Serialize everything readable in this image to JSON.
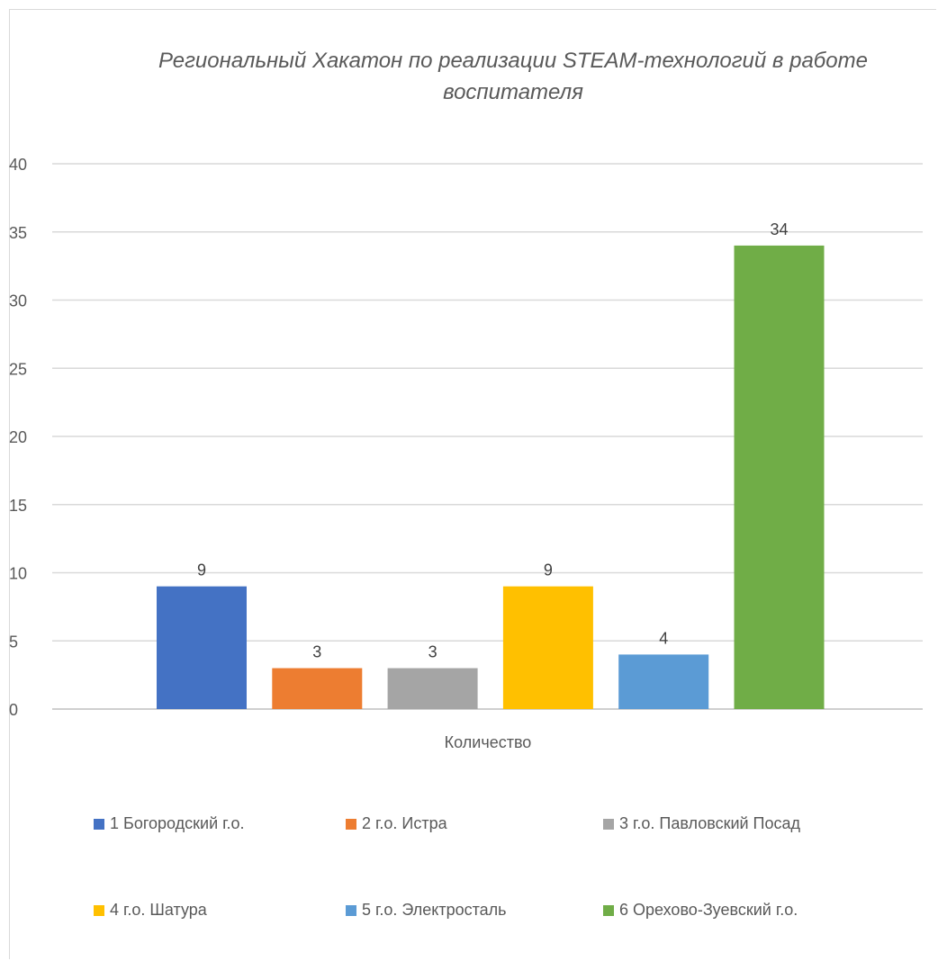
{
  "chart_data": {
    "type": "bar",
    "title": "Региональный Хакатон по реализации STEAM-технологий в работе воспитателя",
    "category_label": "Количество",
    "ylim": [
      0,
      40
    ],
    "yticks": [
      0,
      5,
      10,
      15,
      20,
      25,
      30,
      35,
      40
    ],
    "grid": true,
    "legend_position": "bottom",
    "data_labels": true,
    "series": [
      {
        "name": "1 Богородский г.о.",
        "values": [
          9
        ],
        "color": "#4472C4"
      },
      {
        "name": "2 г.о. Истра",
        "values": [
          3
        ],
        "color": "#ED7D31"
      },
      {
        "name": "3 г.о. Павловский Посад",
        "values": [
          3
        ],
        "color": "#A5A5A5"
      },
      {
        "name": "4 г.о. Шатура",
        "values": [
          9
        ],
        "color": "#FFC000"
      },
      {
        "name": "5 г.о. Электросталь",
        "values": [
          4
        ],
        "color": "#5B9BD5"
      },
      {
        "name": "6 Орехово-Зуевский г.о.",
        "values": [
          34
        ],
        "color": "#70AD47"
      }
    ]
  }
}
